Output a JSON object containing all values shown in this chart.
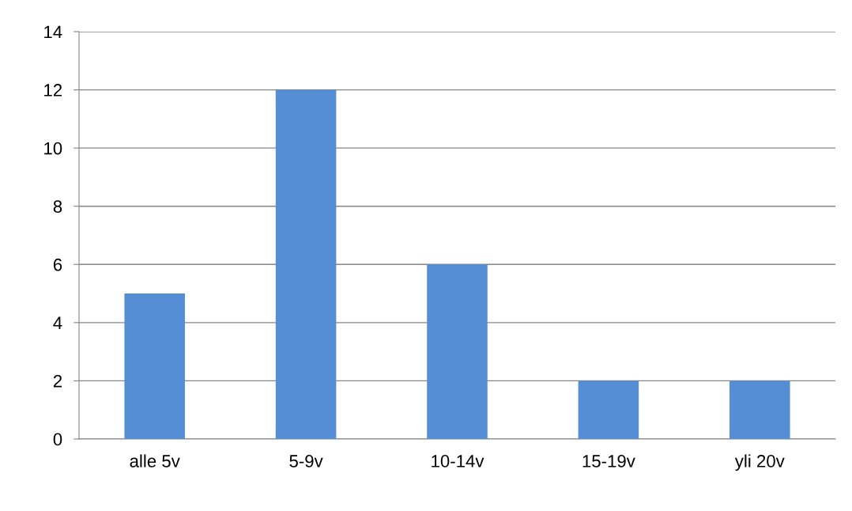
{
  "chart_data": {
    "type": "bar",
    "categories": [
      "alle 5v",
      "5-9v",
      "10-14v",
      "15-19v",
      "yli 20v"
    ],
    "values": [
      5,
      12,
      6,
      2,
      2
    ],
    "color": "#558ed5",
    "ylim": [
      0,
      14
    ],
    "yticks": [
      0,
      2,
      4,
      6,
      8,
      10,
      12,
      14
    ],
    "grid": "y"
  }
}
